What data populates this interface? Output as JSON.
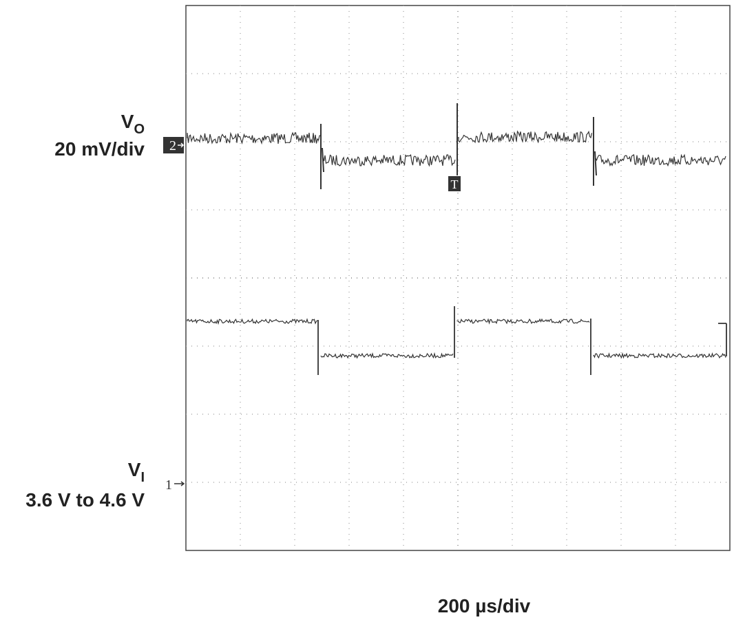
{
  "labels": {
    "vo_main": "V",
    "vo_sub": "O",
    "vo_scale": "20 mV/div",
    "vi_main": "V",
    "vi_sub": "I",
    "vi_range": "3.6 V to 4.6 V",
    "ch2": "2",
    "ch1": "1",
    "trigger": "T",
    "time_scale": "200 µs/div"
  }
}
